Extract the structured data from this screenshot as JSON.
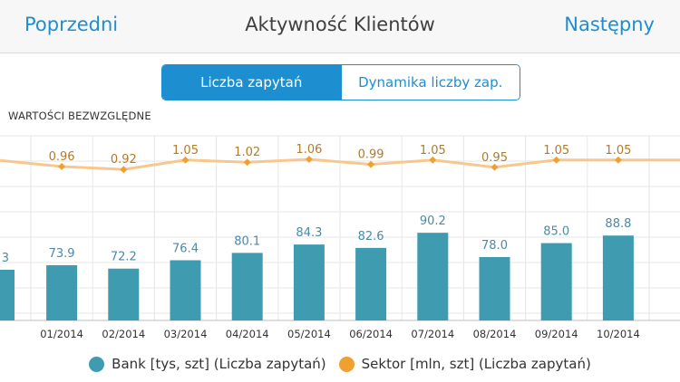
{
  "nav": {
    "prev_label": "Poprzedni",
    "title": "Aktywność Klientów",
    "next_label": "Następny"
  },
  "segments": {
    "active_label": "Liczba zapytań",
    "inactive_label": "Dynamika liczby zap."
  },
  "section_label": "WARTOŚCI BEZWZGLĘDNE",
  "legend": {
    "bank_label": "Bank  [tys, szt] (Liczba zapytań)",
    "sector_label": "Sektor  [mln, szt] (Liczba zapytań)"
  },
  "colors": {
    "accent": "#1d8fd0",
    "bank": "#3f9bb0",
    "sector": "#f0a030",
    "sector_line": "#f7c78e",
    "label_bank": "#4a8aa6",
    "label_sector": "#b37a2a"
  },
  "chart_data": {
    "type": "bar",
    "categories": [
      "01/2014",
      "02/2014",
      "03/2014",
      "04/2014",
      "05/2014",
      "06/2014",
      "07/2014",
      "08/2014",
      "09/2014",
      "10/2014"
    ],
    "series": [
      {
        "name": "Bank  [tys, szt] (Liczba zapytań)",
        "type": "bar",
        "values": [
          73.9,
          72.2,
          76.4,
          80.1,
          84.3,
          82.6,
          90.2,
          78.0,
          85.0,
          88.8
        ],
        "labels": [
          "73.9",
          "72.2",
          "76.4",
          "80.1",
          "84.3",
          "82.6",
          "90.2",
          "78.0",
          "85.0",
          "88.8"
        ]
      },
      {
        "name": "Sektor  [mln, szt] (Liczba zapytań)",
        "type": "line",
        "values": [
          0.96,
          0.92,
          1.05,
          1.02,
          1.06,
          0.99,
          1.05,
          0.95,
          1.05,
          1.05
        ],
        "labels": [
          "0.96",
          "0.92",
          "1.05",
          "1.02",
          "1.06",
          "0.99",
          "1.05",
          "0.95",
          "1.05",
          "1.05"
        ]
      }
    ],
    "partial_left": {
      "bank_label": "3"
    },
    "grid": true,
    "legend_position": "bottom"
  }
}
